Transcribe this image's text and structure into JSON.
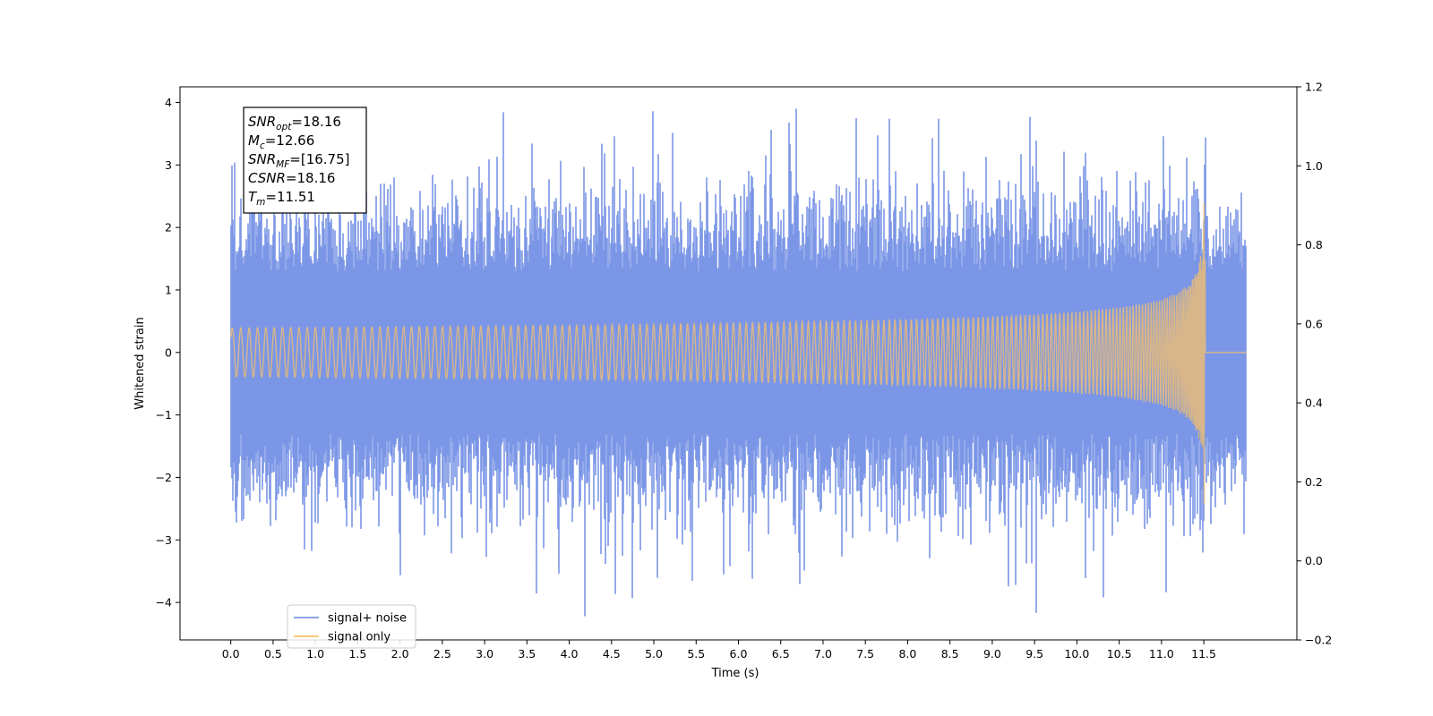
{
  "chart_data": {
    "type": "line",
    "xlabel": "Time (s)",
    "ylabel": "Whitened strain",
    "xlim": [
      -0.6,
      12.6
    ],
    "ylim": [
      -4.6,
      4.25
    ],
    "y2lim": [
      -0.2,
      1.2
    ],
    "x_ticks": [
      "0.0",
      "0.5",
      "1.0",
      "1.5",
      "2.0",
      "2.5",
      "3.0",
      "3.5",
      "4.0",
      "4.5",
      "5.0",
      "5.5",
      "6.0",
      "6.5",
      "7.0",
      "7.5",
      "8.0",
      "8.5",
      "9.0",
      "9.5",
      "10.0",
      "10.5",
      "11.0",
      "11.5"
    ],
    "y_ticks": [
      "−4",
      "−3",
      "−2",
      "−1",
      "0",
      "1",
      "2",
      "3",
      "4"
    ],
    "y2_ticks": [
      "−0.2",
      "0.0",
      "0.2",
      "0.4",
      "0.6",
      "0.8",
      "1.0",
      "1.2"
    ],
    "grid": false,
    "legend_position": "lower-left",
    "series": [
      {
        "name": "signal+ noise",
        "color": "#7b96e6",
        "time_range": [
          0.0,
          12.0
        ],
        "amplitude_envelope": {
          "typical": [
            -1.5,
            1.5
          ],
          "max_peak": 3.86,
          "min_peak": -4.22
        },
        "peaks": [
          [
            4.99,
            3.86
          ],
          [
            7.39,
            3.75
          ],
          [
            7.78,
            3.74
          ],
          [
            11.52,
            3.44
          ],
          [
            4.18,
            -4.22
          ],
          [
            4.75,
            -3.93
          ],
          [
            5.83,
            -3.55
          ],
          [
            10.31,
            -3.92
          ],
          [
            9.28,
            -3.72
          ]
        ]
      },
      {
        "name": "signal only",
        "color": "#f7c06a",
        "time_range": [
          0.0,
          12.0
        ],
        "merger_time": 11.51,
        "peak_amplitude": 2.97
      }
    ],
    "annotation": {
      "lines": [
        {
          "main": "SNR",
          "sub": "opt",
          "rest": "=18.16"
        },
        {
          "main": "M",
          "sub": "c",
          "rest": "=12.66"
        },
        {
          "main": "SNR",
          "sub": "MF",
          "rest": "=[16.75]"
        },
        {
          "main": "CSNR",
          "sub": "",
          "rest": "=18.16"
        },
        {
          "main": "T",
          "sub": "m",
          "rest": "=11.51"
        }
      ]
    }
  }
}
